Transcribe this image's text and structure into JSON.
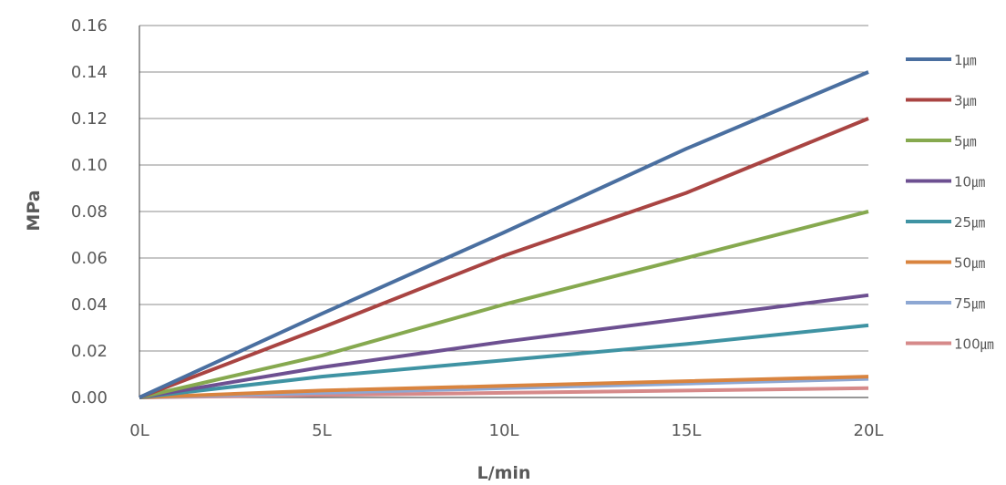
{
  "chart_data": {
    "type": "line",
    "title": "",
    "xlabel": "L/min",
    "ylabel": "MPa",
    "categories": [
      "0L",
      "5L",
      "10L",
      "15L",
      "20L"
    ],
    "yticks": [
      "0.00",
      "0.02",
      "0.04",
      "0.06",
      "0.08",
      "0.10",
      "0.12",
      "0.14",
      "0.16"
    ],
    "ylim": [
      0,
      0.16
    ],
    "grid": true,
    "legend_position": "right",
    "series": [
      {
        "name": "1㎛",
        "color": "#4a6fa0",
        "values": [
          0,
          0.036,
          0.071,
          0.107,
          0.14
        ]
      },
      {
        "name": "3㎛",
        "color": "#a94442",
        "values": [
          0,
          0.03,
          0.061,
          0.088,
          0.12
        ]
      },
      {
        "name": "5㎛",
        "color": "#86a94f",
        "values": [
          0,
          0.018,
          0.04,
          0.06,
          0.08
        ]
      },
      {
        "name": "10㎛",
        "color": "#6d5091",
        "values": [
          0,
          0.013,
          0.024,
          0.034,
          0.044
        ]
      },
      {
        "name": "25㎛",
        "color": "#3f93a3",
        "values": [
          0,
          0.009,
          0.016,
          0.023,
          0.031
        ]
      },
      {
        "name": "50㎛",
        "color": "#d9843f",
        "values": [
          0,
          0.003,
          0.005,
          0.007,
          0.009
        ]
      },
      {
        "name": "75㎛",
        "color": "#8da7d3",
        "values": [
          0,
          0.002,
          0.004,
          0.006,
          0.008
        ]
      },
      {
        "name": "100㎛",
        "color": "#d68a8a",
        "values": [
          0,
          0.001,
          0.002,
          0.003,
          0.004
        ]
      }
    ]
  }
}
